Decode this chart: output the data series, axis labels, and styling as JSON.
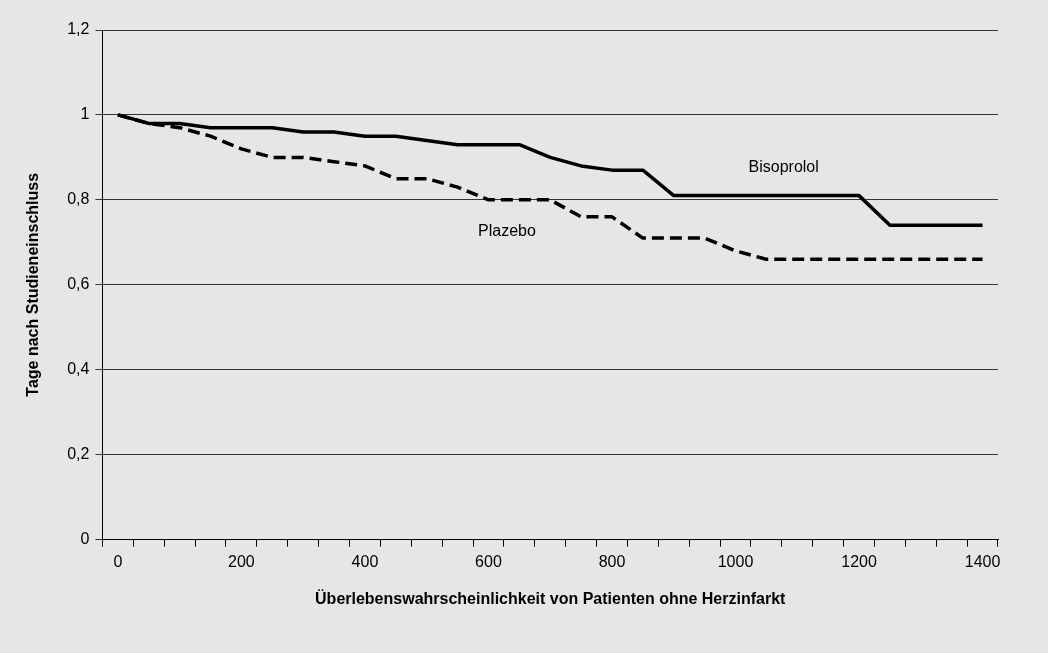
{
  "chart_data": {
    "type": "line",
    "xlabel": "Überlebenswahrscheinlichkeit von Patienten ohne Herzinfarkt",
    "ylabel": "Tage nach Studieneinschluss",
    "categories": [
      "0",
      null,
      null,
      null,
      "200",
      null,
      null,
      null,
      "400",
      null,
      null,
      null,
      "600",
      null,
      null,
      null,
      "800",
      null,
      null,
      null,
      "1000",
      null,
      null,
      null,
      "1200",
      null,
      null,
      null,
      "1400"
    ],
    "ylim": [
      0,
      1.2
    ],
    "yticks": [
      0,
      {
        "value": 0.2,
        "label": "0,2"
      },
      {
        "value": 0.4,
        "label": "0,4"
      },
      {
        "value": 0.6,
        "label": "0,6"
      },
      {
        "value": 0.8,
        "label": "0,8"
      },
      1,
      {
        "value": 1.2,
        "label": "1,2"
      }
    ],
    "grid": "y",
    "legend": false,
    "marker": "none",
    "series": [
      {
        "name": "Bisoprolol",
        "color": "#000000",
        "line_style": "solid",
        "values": [
          1,
          0.98,
          0.98,
          0.97,
          0.97,
          0.97,
          0.96,
          0.96,
          0.95,
          0.95,
          0.94,
          0.93,
          0.93,
          0.93,
          0.9,
          0.88,
          0.87,
          0.87,
          0.81,
          0.81,
          0.81,
          0.81,
          0.81,
          0.81,
          0.81,
          0.74,
          0.74,
          0.74,
          0.74
        ]
      },
      {
        "name": "Plazebo",
        "color": "#000000",
        "line_style": "dashed",
        "values": [
          1,
          0.98,
          0.97,
          0.95,
          0.92,
          0.9,
          0.9,
          0.89,
          0.88,
          0.85,
          0.85,
          0.83,
          0.8,
          0.8,
          0.8,
          0.76,
          0.76,
          0.71,
          0.71,
          0.71,
          0.68,
          0.66,
          0.66,
          0.66,
          0.66,
          0.66,
          0.66,
          0.66,
          0.66
        ]
      }
    ]
  }
}
